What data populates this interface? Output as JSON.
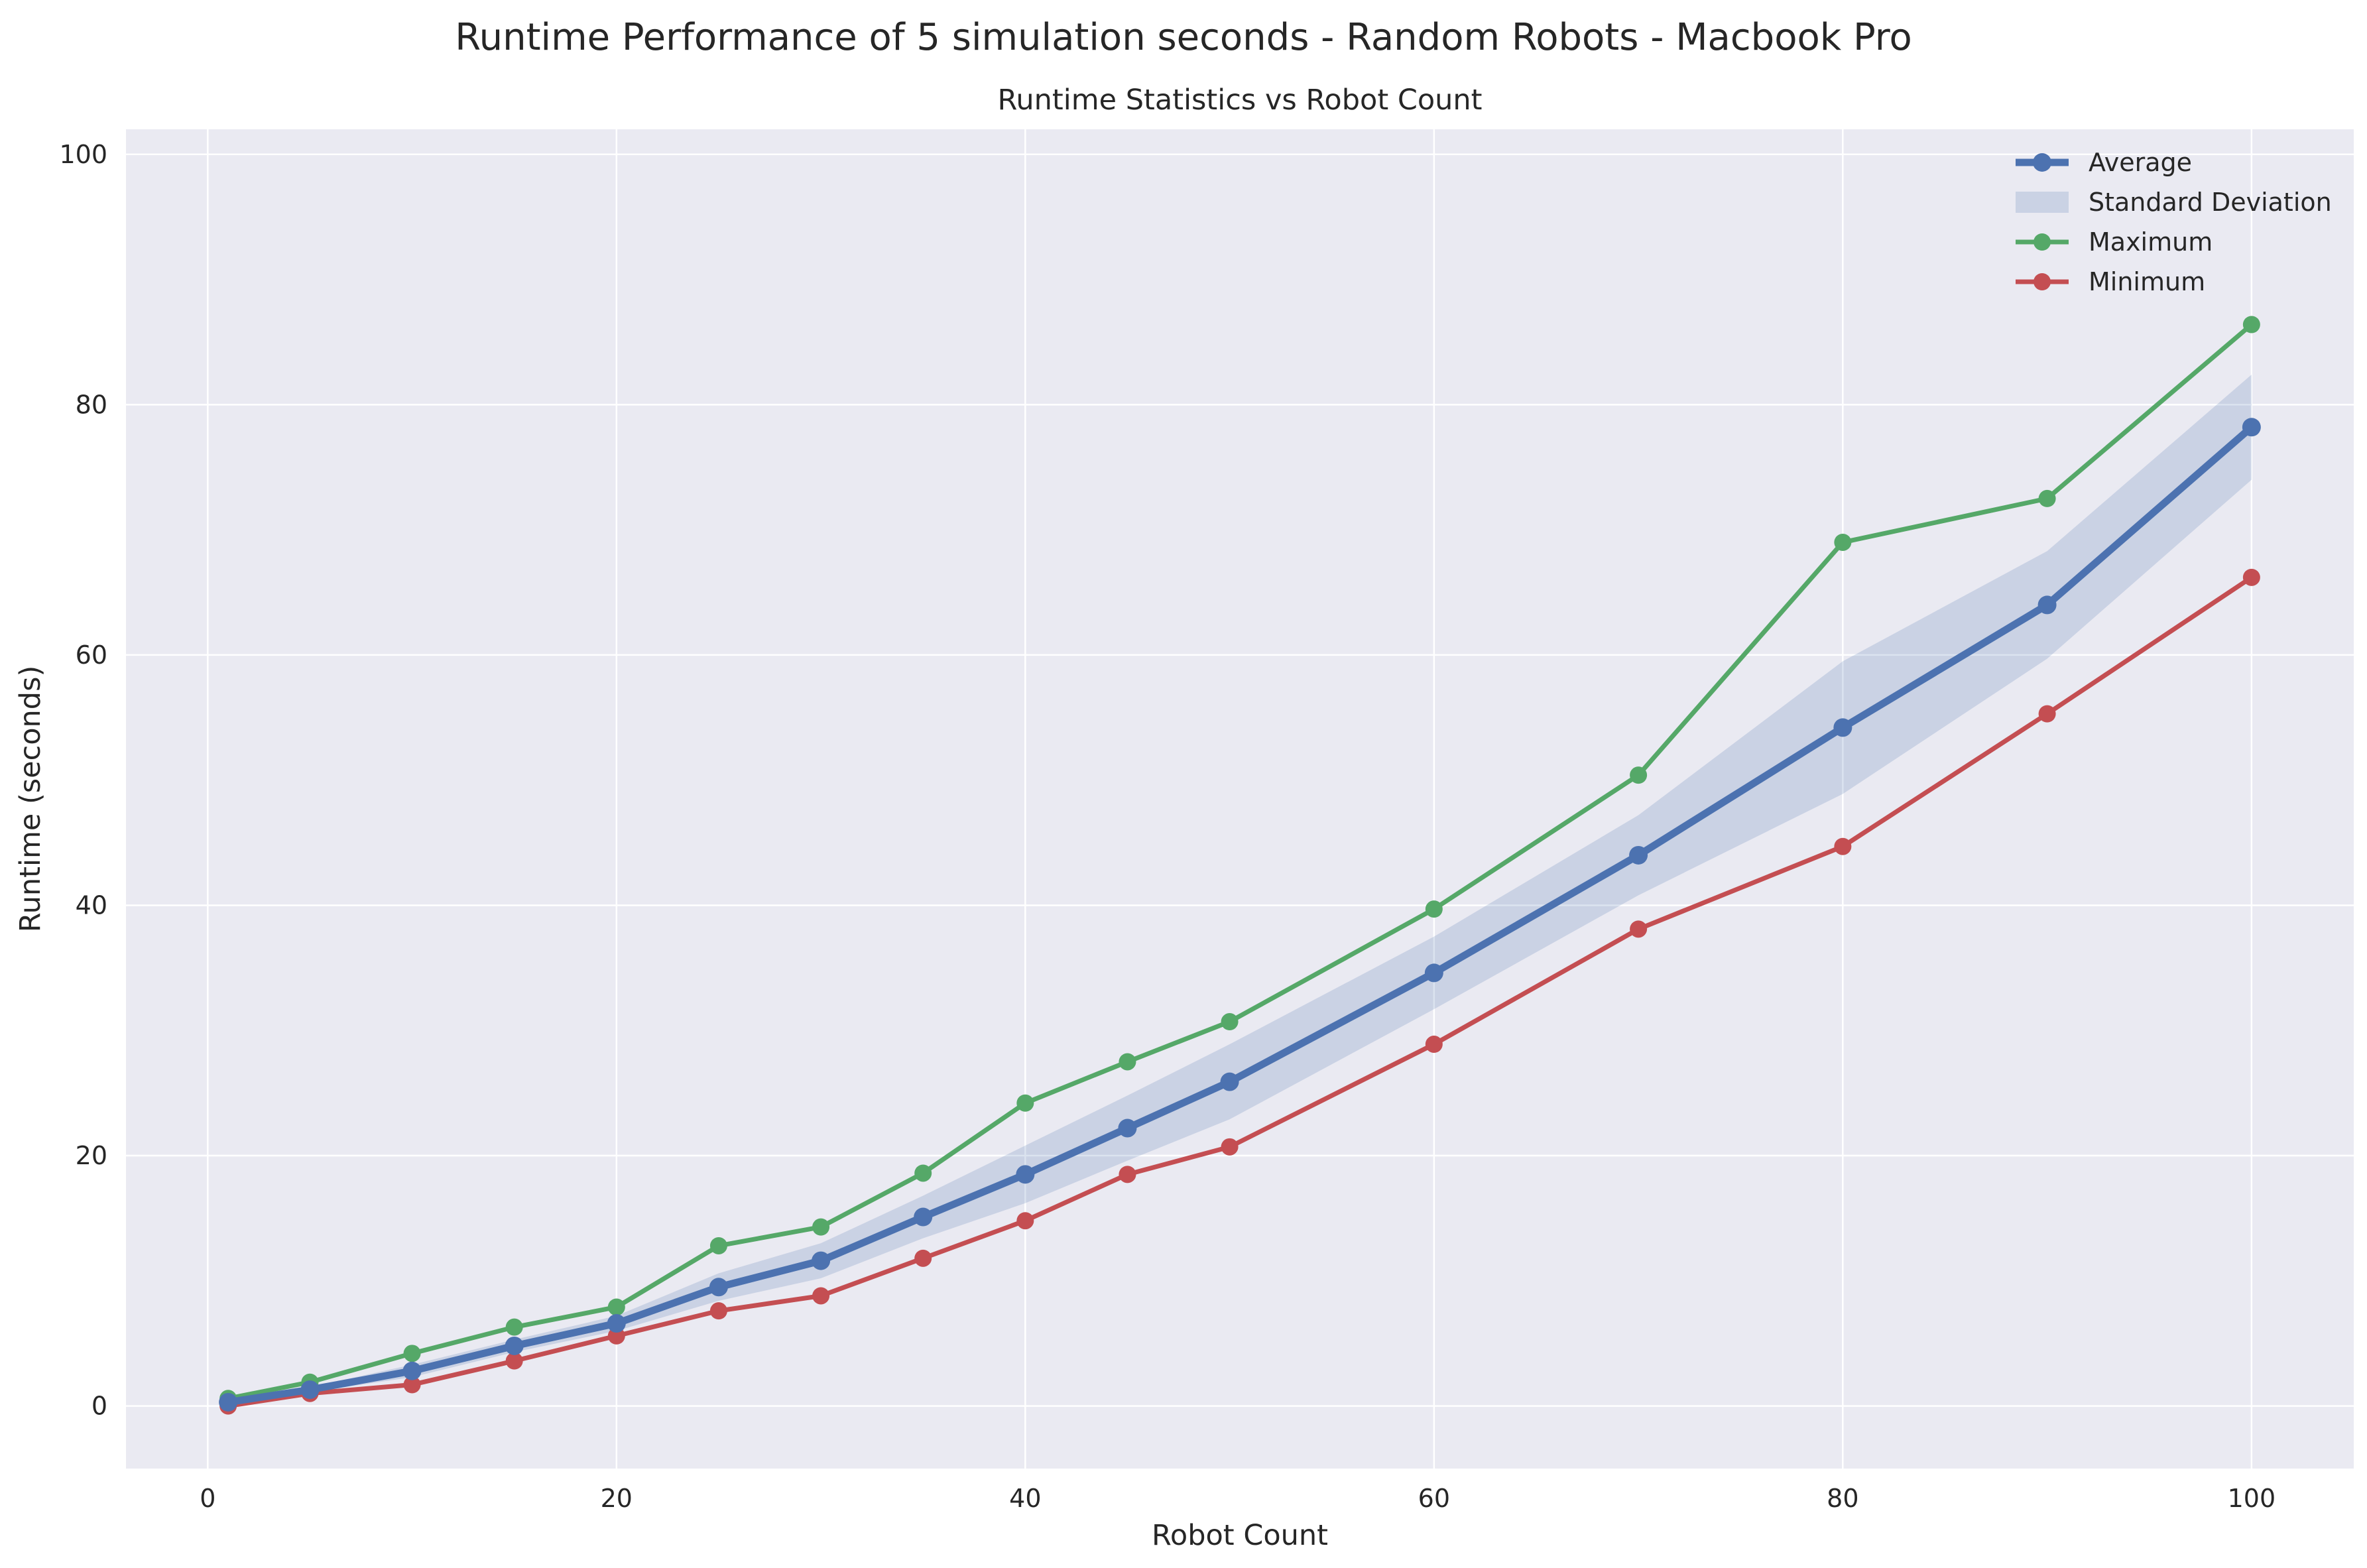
{
  "chart_data": {
    "type": "line",
    "suptitle": "Runtime Performance of 5 simulation seconds - Random Robots - Macbook Pro",
    "title": "Runtime Statistics vs Robot Count",
    "xlabel": "Robot Count",
    "ylabel": "Runtime (seconds)",
    "xlim": [
      -4,
      105
    ],
    "ylim": [
      -5,
      102
    ],
    "xticks": [
      0,
      20,
      40,
      60,
      80,
      100
    ],
    "yticks": [
      0,
      20,
      40,
      60,
      80,
      100
    ],
    "x_tick_labels": [
      "0",
      "20",
      "40",
      "60",
      "80",
      "100"
    ],
    "y_tick_labels": [
      "0",
      "20",
      "40",
      "60",
      "80",
      "100"
    ],
    "grid": true,
    "legend_position": "top-right",
    "x": [
      1,
      5,
      10,
      15,
      20,
      25,
      30,
      35,
      40,
      45,
      50,
      60,
      70,
      80,
      90,
      100
    ],
    "series": [
      {
        "name": "Average",
        "color": "#4c72b0",
        "values": [
          0.3,
          1.3,
          2.8,
          4.8,
          6.6,
          9.5,
          11.6,
          15.1,
          18.5,
          22.2,
          25.9,
          34.6,
          44.0,
          54.2,
          64.0,
          78.2
        ]
      },
      {
        "name": "Maximum",
        "color": "#55a868",
        "values": [
          0.6,
          1.9,
          4.2,
          6.3,
          7.9,
          12.8,
          14.3,
          18.6,
          24.2,
          27.5,
          30.7,
          39.7,
          50.4,
          69.0,
          72.5,
          86.4
        ]
      },
      {
        "name": "Minimum",
        "color": "#c44e52",
        "values": [
          0.0,
          1.0,
          1.7,
          3.6,
          5.6,
          7.6,
          8.8,
          11.8,
          14.8,
          18.5,
          20.7,
          28.9,
          38.1,
          44.7,
          55.3,
          66.2
        ]
      }
    ],
    "band": {
      "name": "Standard Deviation",
      "color": "#4c72b0",
      "lower": [
        0.2,
        1.1,
        2.3,
        4.3,
        6.0,
        8.4,
        10.2,
        13.4,
        16.2,
        19.6,
        22.9,
        31.7,
        40.8,
        48.9,
        59.7,
        74.0
      ],
      "upper": [
        0.4,
        1.5,
        3.3,
        5.3,
        7.2,
        10.6,
        13.0,
        16.8,
        20.8,
        24.8,
        28.9,
        37.5,
        47.2,
        59.5,
        68.3,
        82.4
      ]
    },
    "legend_order": [
      "Average",
      "Standard Deviation",
      "Maximum",
      "Minimum"
    ]
  }
}
